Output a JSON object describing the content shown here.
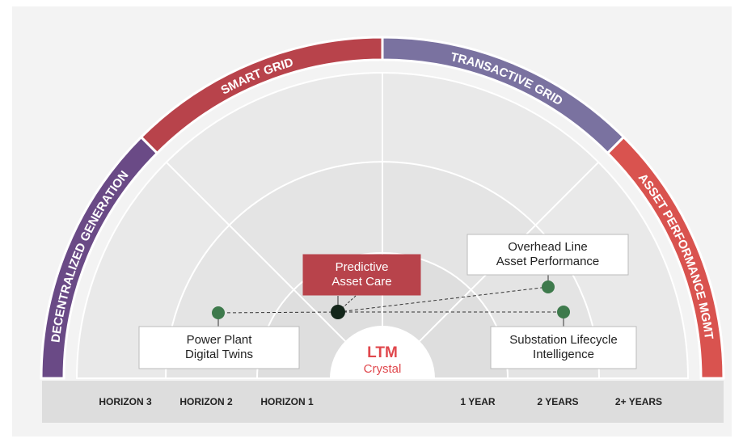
{
  "bands": [
    "DECENTRALIZED GENERATION",
    "SMART GRID",
    "TRANSACTIVE GRID",
    "ASSET PERFORMANCE MGMT"
  ],
  "axis_labels": [
    "HORIZON 3",
    "HORIZON 2",
    "HORIZON 1",
    "1 YEAR",
    "2 YEARS",
    "2+ YEARS"
  ],
  "center": {
    "title": "LTM",
    "subtitle": "Crystal"
  },
  "nodes": [
    {
      "lines": [
        "Predictive",
        "Asset Care"
      ]
    },
    {
      "lines": [
        "Power Plant",
        "Digital Twins"
      ]
    },
    {
      "lines": [
        "Overhead Line",
        "Asset Performance"
      ]
    },
    {
      "lines": [
        "Substation Lifecycle",
        "Intelligence"
      ]
    }
  ]
}
